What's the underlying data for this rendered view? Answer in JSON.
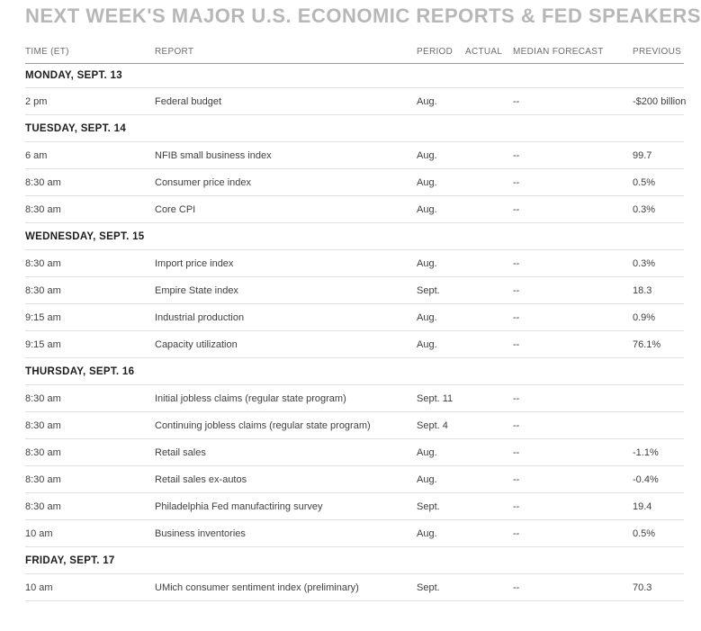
{
  "chart_data": {
    "type": "table",
    "title": "NEXT WEEK'S MAJOR U.S. ECONOMIC REPORTS & FED SPEAKERS",
    "columns": [
      "TIME (ET)",
      "REPORT",
      "PERIOD",
      "ACTUAL",
      "MEDIAN FORECAST",
      "PREVIOUS"
    ],
    "sections": [
      {
        "day": "MONDAY, SEPT. 13",
        "rows": [
          {
            "time": "2 pm",
            "report": "Federal budget",
            "period": "Aug.",
            "actual": "",
            "forecast": "--",
            "previous": "-$200 billion"
          }
        ]
      },
      {
        "day": "TUESDAY, SEPT. 14",
        "rows": [
          {
            "time": "6 am",
            "report": "NFIB small business index",
            "period": "Aug.",
            "actual": "",
            "forecast": "--",
            "previous": "99.7"
          },
          {
            "time": "8:30 am",
            "report": "Consumer price index",
            "period": "Aug.",
            "actual": "",
            "forecast": "--",
            "previous": "0.5%"
          },
          {
            "time": "8:30 am",
            "report": "Core CPI",
            "period": "Aug.",
            "actual": "",
            "forecast": "--",
            "previous": "0.3%"
          }
        ]
      },
      {
        "day": "WEDNESDAY, SEPT. 15",
        "rows": [
          {
            "time": "8:30 am",
            "report": "Import price index",
            "period": "Aug.",
            "actual": "",
            "forecast": "--",
            "previous": "0.3%"
          },
          {
            "time": "8:30 am",
            "report": "Empire State index",
            "period": "Sept.",
            "actual": "",
            "forecast": "--",
            "previous": "18.3"
          },
          {
            "time": "9:15 am",
            "report": "Industrial production",
            "period": "Aug.",
            "actual": "",
            "forecast": "--",
            "previous": "0.9%"
          },
          {
            "time": "9:15 am",
            "report": "Capacity utilization",
            "period": "Aug.",
            "actual": "",
            "forecast": "--",
            "previous": "76.1%"
          }
        ]
      },
      {
        "day": "THURSDAY, SEPT. 16",
        "rows": [
          {
            "time": "8:30 am",
            "report": "Initial jobless claims (regular state program)",
            "period": "Sept. 11",
            "actual": "",
            "forecast": "--",
            "previous": ""
          },
          {
            "time": "8:30 am",
            "report": "Continuing jobless claims (regular state program)",
            "period": "Sept. 4",
            "actual": "",
            "forecast": "--",
            "previous": ""
          },
          {
            "time": "8:30 am",
            "report": "Retail sales",
            "period": "Aug.",
            "actual": "",
            "forecast": "--",
            "previous": "-1.1%"
          },
          {
            "time": "8:30 am",
            "report": "Retail sales ex-autos",
            "period": "Aug.",
            "actual": "",
            "forecast": "--",
            "previous": "-0.4%"
          },
          {
            "time": "8:30 am",
            "report": "Philadelphia Fed manufactiring survey",
            "period": "Sept.",
            "actual": "",
            "forecast": "--",
            "previous": "19.4"
          },
          {
            "time": "10 am",
            "report": "Business inventories",
            "period": "Aug.",
            "actual": "",
            "forecast": "--",
            "previous": "0.5%"
          }
        ]
      },
      {
        "day": "FRIDAY, SEPT. 17",
        "rows": [
          {
            "time": "10 am",
            "report": "UMich consumer sentiment index (preliminary)",
            "period": "Sept.",
            "actual": "",
            "forecast": "--",
            "previous": "70.3"
          }
        ]
      }
    ]
  },
  "colors": {
    "background": "#ffffff",
    "title_text": "#b7b7b7",
    "column_header_text": "#6d6d6d",
    "header_border": "#9b9b9b",
    "row_border": "#e0e0e0",
    "section_header_text": "#1d1d1d",
    "cell_text": "#404040"
  }
}
